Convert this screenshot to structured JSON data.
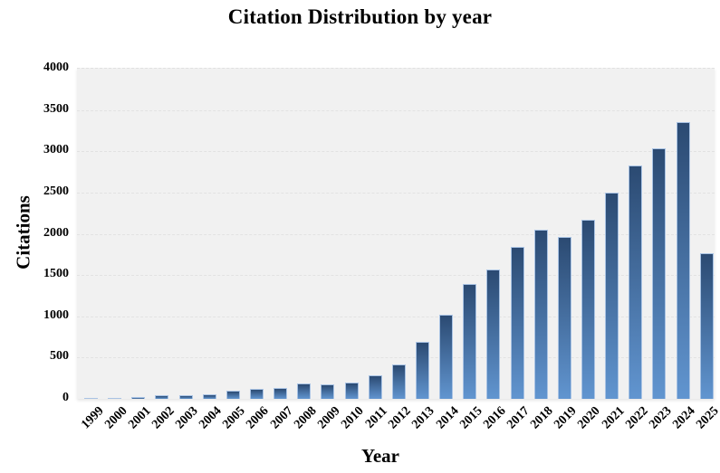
{
  "chart_data": {
    "type": "bar",
    "title": "Citation Distribution by year",
    "xlabel": "Year",
    "ylabel": "Citations",
    "categories": [
      "1999",
      "2000",
      "2001",
      "2002",
      "2003",
      "2004",
      "2005",
      "2006",
      "2007",
      "2008",
      "2009",
      "2010",
      "2011",
      "2012",
      "2013",
      "2014",
      "2015",
      "2016",
      "2017",
      "2018",
      "2019",
      "2020",
      "2021",
      "2022",
      "2023",
      "2024",
      "2025"
    ],
    "values": [
      15,
      5,
      20,
      45,
      40,
      60,
      95,
      125,
      130,
      190,
      170,
      195,
      280,
      420,
      695,
      1020,
      1395,
      1570,
      1845,
      2050,
      1965,
      2170,
      2500,
      2830,
      3040,
      3350,
      1760
    ],
    "ylim": [
      0,
      4000
    ],
    "yticks": [
      0,
      500,
      1000,
      1500,
      2000,
      2500,
      3000,
      3500,
      4000
    ],
    "grid": "horizontal-dashed",
    "legend": "none",
    "colors": {
      "bar_gradient_top": "#2b4a72",
      "bar_gradient_bottom": "#6195d0",
      "bar_border": "#a9c3e4",
      "plot_background": "#f1f1f1",
      "gridline": "#e2e2e2",
      "text": "#000000",
      "page_background": "#ffffff"
    }
  }
}
